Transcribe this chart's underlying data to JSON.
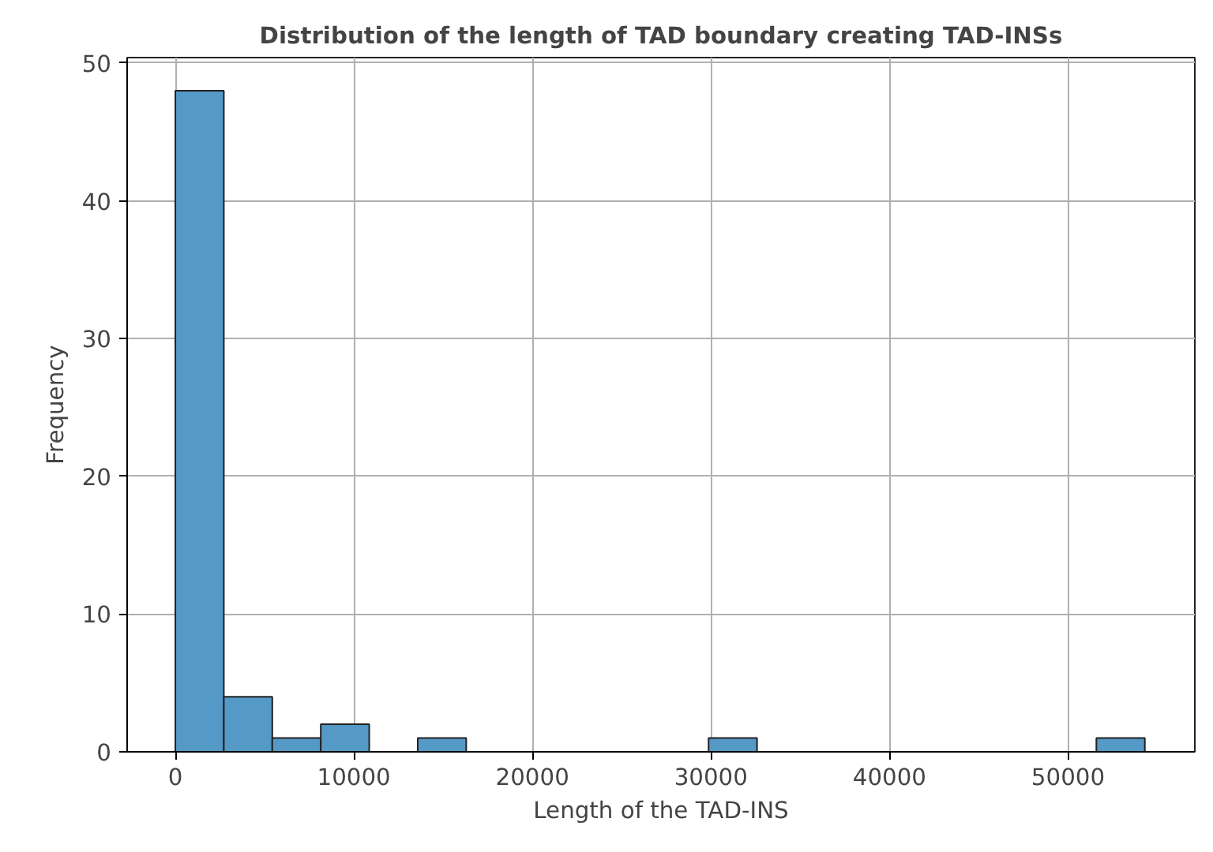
{
  "chart_data": {
    "type": "histogram",
    "title": "Distribution of the length of TAD boundary creating TAD-INSs",
    "xlabel": "Length of the TAD-INS",
    "ylabel": "Frequency",
    "bins": [
      0,
      2715,
      5430,
      8145,
      10860,
      13575,
      16290,
      19005,
      21720,
      24435,
      27150,
      29865,
      32580,
      35295,
      38010,
      40725,
      43440,
      46155,
      48870,
      51585,
      54300
    ],
    "values": [
      48,
      4,
      1,
      2,
      0,
      1,
      0,
      0,
      0,
      0,
      0,
      1,
      0,
      0,
      0,
      0,
      0,
      0,
      0,
      1
    ],
    "color": "#5599c7",
    "xlim": [
      -2700,
      57100
    ],
    "ylim": [
      0,
      50.4
    ],
    "xticks": [
      0,
      10000,
      20000,
      30000,
      40000,
      50000
    ],
    "yticks": [
      0,
      10,
      20,
      30,
      40,
      50
    ],
    "grid": true
  }
}
